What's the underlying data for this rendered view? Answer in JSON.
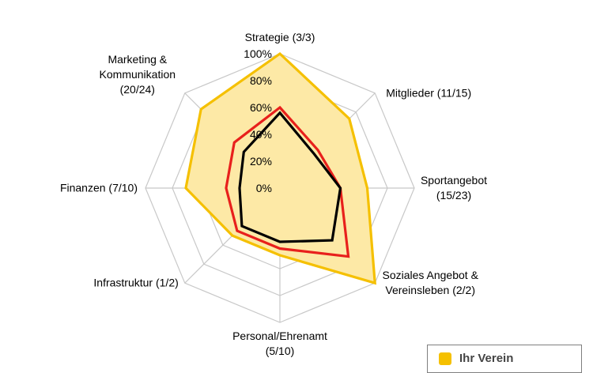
{
  "chart_data": {
    "type": "radar",
    "axes": [
      "Strategie (3/3)",
      "Mitglieder (11/15)",
      "Sportangebot (15/23)",
      "Soziales Angebot & Vereinsleben (2/2)",
      "Personal/Ehrenamt (5/10)",
      "Infrastruktur (1/2)",
      "Finanzen (7/10)",
      "Marketing & Kommunikation (20/24)"
    ],
    "axis_label_lines": [
      [
        "Strategie (3/3)"
      ],
      [
        "Mitglieder (11/15)"
      ],
      [
        "Sportangebot",
        "(15/23)"
      ],
      [
        "Soziales Angebot &",
        "Vereinsleben (2/2)"
      ],
      [
        "Personal/Ehrenamt",
        "(5/10)"
      ],
      [
        "Infrastruktur (1/2)"
      ],
      [
        "Finanzen (7/10)"
      ],
      [
        "Marketing &",
        "Kommunikation",
        "(20/24)"
      ]
    ],
    "r_ticks": [
      0,
      20,
      40,
      60,
      80,
      100
    ],
    "r_tick_labels": [
      "0%",
      "20%",
      "40%",
      "60%",
      "80%",
      "100%"
    ],
    "rlim": [
      0,
      100
    ],
    "grid": true,
    "series": [
      {
        "name": "Ihr Verein",
        "values": [
          100,
          73,
          65,
          100,
          50,
          50,
          70,
          83
        ],
        "color": "#f5c000",
        "fill": "#fde9a6"
      },
      {
        "values": [
          60,
          40,
          45,
          72,
          45,
          45,
          40,
          48
        ],
        "color": "#e8201c"
      },
      {
        "values": [
          56,
          36,
          45,
          55,
          40,
          40,
          30,
          38
        ],
        "color": "#000000"
      }
    ],
    "legend": {
      "position": "bottom-right",
      "entries": [
        "Ihr Verein"
      ]
    }
  }
}
